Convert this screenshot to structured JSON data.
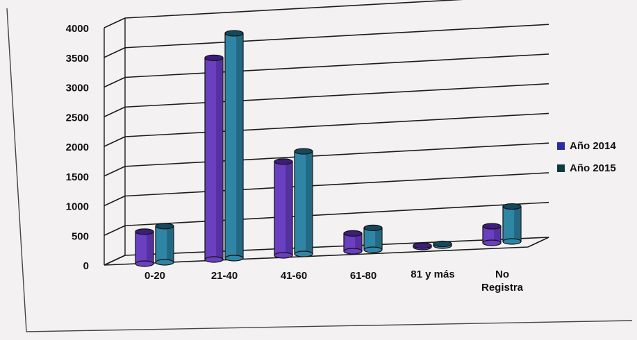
{
  "chart_data": {
    "type": "bar",
    "categories": [
      "0-20",
      "21-40",
      "41-60",
      "61-80",
      "81 y más",
      "No Registra"
    ],
    "series": [
      {
        "name": "Año 2014",
        "values": [
          540,
          3400,
          1580,
          300,
          25,
          280
        ]
      },
      {
        "name": "Año 2015",
        "values": [
          610,
          3790,
          1730,
          370,
          30,
          590
        ]
      }
    ],
    "ylim": [
      0,
      4000
    ],
    "yticks": [
      "0",
      "500",
      "1000",
      "1500",
      "2000",
      "2500",
      "3000",
      "3500",
      "4000"
    ],
    "grid": true,
    "legend_position": "right",
    "style": "3d-cylinder"
  },
  "colors": {
    "series_2014": "#6a3fc0",
    "series_2014_dark": "#3b1e7a",
    "series_2015": "#2f86a4",
    "series_2015_dark": "#16485c",
    "legend_2014": "#2d2aa8",
    "legend_2015": "#0f3b40",
    "grid": "#1c1c1c",
    "background": "#f3f1f2"
  }
}
